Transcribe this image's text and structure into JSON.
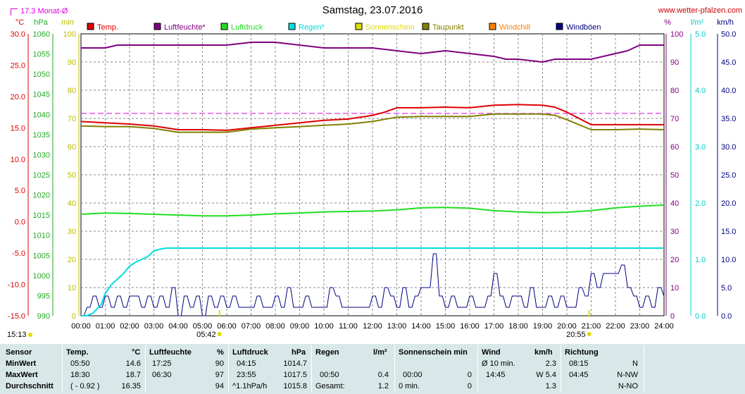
{
  "header": {
    "title": "Samstag, 23.07.2016",
    "site": "www.wetter-pfalzen.com",
    "month_avg_label": "17.3 Monat-Ø"
  },
  "axes": {
    "units": {
      "temp": "°C",
      "pressure": "hPa",
      "minutes": "min",
      "humidity": "%",
      "rain": "l/m²",
      "wind": "km/h"
    },
    "temp_ticks": [
      "30.0",
      "25.0",
      "20.0",
      "15.0",
      "10.0",
      "5.0",
      "0.0",
      "-5.0",
      "-10.0",
      "-15.0"
    ],
    "pressure_ticks": [
      "1060",
      "1055",
      "1050",
      "1045",
      "1040",
      "1035",
      "1030",
      "1025",
      "1020",
      "1015",
      "1010",
      "1005",
      "1000",
      "995",
      "990"
    ],
    "minutes_ticks": [
      "100",
      "90",
      "80",
      "70",
      "60",
      "50",
      "40",
      "30",
      "20",
      "10",
      "0"
    ],
    "humidity_ticks": [
      "100",
      "90",
      "80",
      "70",
      "60",
      "50",
      "40",
      "30",
      "20",
      "10",
      "0"
    ],
    "rain_ticks": [
      "5.0",
      "4.0",
      "3.0",
      "2.0",
      "1.0",
      "0.0"
    ],
    "wind_ticks": [
      "50.0",
      "45.0",
      "40.0",
      "35.0",
      "30.0",
      "25.0",
      "20.0",
      "15.0",
      "10.0",
      "5.0",
      "0.0"
    ],
    "time_ticks": [
      "00:00",
      "01:00",
      "02:00",
      "03:00",
      "04:00",
      "05:00",
      "06:00",
      "07:00",
      "08:00",
      "09:00",
      "10:00",
      "11:00",
      "12:00",
      "13:00",
      "14:00",
      "15:00",
      "16:00",
      "17:00",
      "18:00",
      "19:00",
      "20:00",
      "21:00",
      "22:00",
      "23:00",
      "24:00"
    ],
    "sunrise": "05:42",
    "sunset": "20:55",
    "last_update": "15:13"
  },
  "legend": [
    {
      "name": "Temp.",
      "color": "#dd0000"
    },
    {
      "name": "Luftfeuchte*",
      "color": "#800080"
    },
    {
      "name": "Luftdruck",
      "color": "#22dd22"
    },
    {
      "name": "Regen*",
      "color": "#00dddd"
    },
    {
      "name": "Sonnenschein",
      "color": "#dddd00"
    },
    {
      "name": "Taupunkt",
      "color": "#808000"
    },
    {
      "name": "Windchill",
      "color": "#ff8000"
    },
    {
      "name": "Windböen",
      "color": "#000080"
    }
  ],
  "chart_data": {
    "type": "line",
    "x_unit": "hours",
    "x_range": [
      0,
      24
    ],
    "month_avg_temp": 17.3,
    "series": [
      {
        "name": "Temp.",
        "color": "#dd0000",
        "axis": "temp",
        "x": [
          0,
          1,
          2,
          3,
          4,
          5,
          6,
          7,
          8,
          9,
          10,
          11,
          12,
          12.5,
          13,
          14,
          15,
          16,
          17,
          18,
          19,
          19.5,
          20,
          20.5,
          21,
          22,
          23,
          24
        ],
        "values": [
          16.0,
          15.8,
          15.6,
          15.3,
          14.7,
          14.7,
          14.6,
          15.0,
          15.4,
          15.8,
          16.2,
          16.4,
          17.0,
          17.5,
          18.2,
          18.2,
          18.3,
          18.2,
          18.6,
          18.7,
          18.6,
          18.3,
          17.5,
          16.5,
          15.5,
          15.5,
          15.5,
          15.5
        ]
      },
      {
        "name": "Luftfeuchte*",
        "color": "#800080",
        "axis": "humidity",
        "x": [
          0,
          1,
          1.5,
          2,
          3,
          4,
          5,
          6,
          7,
          8,
          9,
          10,
          11,
          12,
          13,
          14,
          15,
          16,
          17,
          17.5,
          18,
          19,
          19.5,
          20,
          21,
          22,
          22.5,
          23,
          24
        ],
        "values": [
          95,
          95,
          96,
          96,
          96,
          96,
          96,
          96,
          97,
          97,
          96,
          95,
          95,
          95,
          94,
          93,
          94,
          93,
          92,
          91,
          91,
          90,
          91,
          91,
          91,
          93,
          94,
          96,
          96
        ]
      },
      {
        "name": "Luftdruck",
        "color": "#22dd22",
        "axis": "pressure",
        "x": [
          0,
          1,
          2,
          3,
          4,
          5,
          6,
          7,
          8,
          9,
          10,
          11,
          12,
          13,
          14,
          15,
          16,
          17,
          18,
          19,
          20,
          21,
          22,
          23,
          24
        ],
        "values": [
          1015.2,
          1015.5,
          1015.4,
          1015.2,
          1015.0,
          1014.8,
          1014.8,
          1015.0,
          1015.3,
          1015.5,
          1015.8,
          1015.9,
          1016.0,
          1016.3,
          1016.8,
          1016.9,
          1016.7,
          1016.1,
          1015.8,
          1015.6,
          1015.7,
          1016.1,
          1016.8,
          1017.2,
          1017.5
        ]
      },
      {
        "name": "Regen*",
        "color": "#00dddd",
        "axis": "rain",
        "x": [
          0,
          0.25,
          0.5,
          0.83,
          1,
          1.25,
          1.5,
          1.75,
          2,
          2.25,
          2.5,
          2.75,
          3,
          3.25,
          3.5,
          3.75,
          4,
          5,
          6,
          7,
          8,
          9,
          10,
          11,
          12,
          13,
          14,
          15,
          16,
          17,
          18,
          19,
          20,
          21,
          22,
          23,
          24
        ],
        "values": [
          0,
          0,
          0.05,
          0.2,
          0.4,
          0.55,
          0.65,
          0.75,
          0.88,
          0.95,
          1.0,
          1.05,
          1.15,
          1.18,
          1.2,
          1.2,
          1.2,
          1.2,
          1.2,
          1.2,
          1.2,
          1.2,
          1.2,
          1.2,
          1.2,
          1.2,
          1.2,
          1.2,
          1.2,
          1.2,
          1.2,
          1.2,
          1.2,
          1.2,
          1.2,
          1.2,
          1.2
        ]
      },
      {
        "name": "Taupunkt",
        "color": "#808000",
        "axis": "temp",
        "x": [
          0,
          1,
          2,
          3,
          4,
          5,
          6,
          7,
          8,
          9,
          10,
          11,
          12,
          13,
          14,
          15,
          16,
          17,
          18,
          19,
          19.5,
          20,
          20.5,
          21,
          22,
          23,
          24
        ],
        "values": [
          15.3,
          15.2,
          15.2,
          14.9,
          14.3,
          14.3,
          14.3,
          14.8,
          15.0,
          15.2,
          15.4,
          15.6,
          16.0,
          16.7,
          16.8,
          16.8,
          16.8,
          17.2,
          17.2,
          17.2,
          17.0,
          16.3,
          15.5,
          14.7,
          14.7,
          14.8,
          14.7
        ]
      },
      {
        "name": "Windböen",
        "color": "#000080",
        "axis": "wind",
        "x": [
          0,
          0.25,
          0.5,
          0.75,
          1,
          1.25,
          1.5,
          1.75,
          2,
          2.25,
          2.5,
          2.75,
          3,
          3.25,
          3.5,
          3.75,
          4,
          4.25,
          4.5,
          4.75,
          5,
          5.25,
          5.5,
          5.75,
          6,
          6.25,
          6.5,
          6.75,
          7,
          7.25,
          7.5,
          7.75,
          8,
          8.25,
          8.5,
          8.75,
          9,
          9.25,
          9.5,
          9.75,
          10,
          10.25,
          10.5,
          10.75,
          11,
          11.25,
          11.5,
          11.75,
          12,
          12.25,
          12.5,
          12.75,
          13,
          13.25,
          13.5,
          13.75,
          14,
          14.25,
          14.5,
          14.75,
          15,
          15.25,
          15.5,
          15.75,
          16,
          16.25,
          16.5,
          16.75,
          17,
          17.25,
          17.5,
          17.75,
          18,
          18.25,
          18.5,
          18.75,
          19,
          19.25,
          19.5,
          19.75,
          20,
          20.25,
          20.5,
          20.75,
          21,
          21.25,
          21.5,
          21.75,
          22,
          22.25,
          22.5,
          22.75,
          23,
          23.25,
          23.5,
          23.75,
          24
        ],
        "values": [
          0,
          1.5,
          3.5,
          1.5,
          3.5,
          1.5,
          3.5,
          1.5,
          3.5,
          3.5,
          1.5,
          3.5,
          1.5,
          3.5,
          1.5,
          5.0,
          0,
          3.5,
          1.5,
          3.5,
          0,
          3.5,
          1.5,
          3.5,
          1.5,
          3.5,
          1.5,
          1.5,
          1.5,
          3.5,
          1.5,
          1.5,
          3.5,
          1.5,
          5.0,
          1.5,
          1.5,
          3.5,
          1.5,
          1.5,
          1.5,
          5.0,
          3.5,
          1.5,
          1.5,
          1.5,
          1.5,
          1.5,
          3.5,
          1.5,
          5.0,
          3.5,
          1.5,
          5.0,
          1.5,
          3.5,
          5.0,
          5.0,
          11.0,
          3.5,
          1.5,
          3.5,
          1.5,
          1.5,
          3.5,
          1.5,
          1.5,
          3.5,
          7.5,
          3.5,
          1.5,
          3.5,
          3.5,
          1.5,
          5.0,
          1.5,
          1.5,
          3.5,
          1.5,
          3.5,
          1.5,
          1.5,
          5.0,
          3.5,
          7.5,
          5.0,
          7.5,
          7.5,
          7.5,
          9.0,
          5.0,
          3.5,
          1.5,
          3.5,
          1.5,
          5.0,
          3.5
        ]
      }
    ]
  },
  "stats": {
    "col_headers": [
      "Sensor",
      "Temp.",
      "°C",
      "Luftfeuchte",
      "%",
      "Luftdruck",
      "hPa",
      "Regen",
      "l/m²",
      "Sonnenschein min",
      "Wind",
      "km/h",
      "Richtung"
    ],
    "rows": [
      {
        "label": "MinWert",
        "temp_time": "05:50",
        "temp_val": "14.6",
        "hum_time": "17:25",
        "hum_val": "90",
        "press_time": "04:15",
        "press_val": "1014.7",
        "rain_time": "",
        "rain_val": "",
        "sun_time": "",
        "sun_val": "",
        "wind_time": "Ø 10 min.",
        "wind_val": "2.3",
        "dir_time": "08:15",
        "dir_val": "N"
      },
      {
        "label": "MaxWert",
        "temp_time": "18:30",
        "temp_val": "18.7",
        "hum_time": "06:30",
        "hum_val": "97",
        "press_time": "23:55",
        "press_val": "1017.5",
        "rain_time": "00:50",
        "rain_val": "0.4",
        "sun_time": "00:00",
        "sun_val": "0",
        "wind_time": "14:45",
        "wind_val": "W 5.4",
        "dir_time": "04:45",
        "dir_val": "N-NW"
      },
      {
        "label": "Durchschnitt",
        "temp_time": "( - 0.92 )",
        "temp_val": "16.35",
        "hum_time": "",
        "hum_val": "94",
        "press_time": "^1.1hPa/h",
        "press_val": "1015.8",
        "rain_time": "Gesamt:",
        "rain_val": "1.2",
        "sun_time": "0 min.",
        "sun_val": "0",
        "wind_time": "",
        "wind_val": "1.3",
        "dir_time": "",
        "dir_val": "N-NO"
      }
    ]
  }
}
